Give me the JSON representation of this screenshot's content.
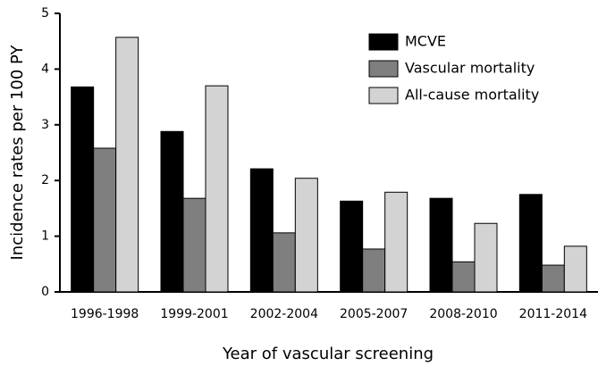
{
  "chart_data": {
    "type": "bar",
    "x_label": "Year of vascular screening",
    "y_label": "Incidence rates per 100 PY",
    "categories": [
      "1996-1998",
      "1999-2001",
      "2002-2004",
      "2005-2007",
      "2008-2010",
      "2011-2014"
    ],
    "series": [
      {
        "name": "MCVE",
        "color": "#000000",
        "values": [
          3.68,
          2.88,
          2.21,
          1.63,
          1.68,
          1.75
        ]
      },
      {
        "name": "Vascular mortality",
        "color": "#7f7f7f",
        "values": [
          2.58,
          1.68,
          1.06,
          0.77,
          0.54,
          0.48
        ]
      },
      {
        "name": "All-cause mortality",
        "color": "#d3d3d3",
        "values": [
          4.57,
          3.7,
          2.04,
          1.79,
          1.23,
          0.82
        ]
      }
    ],
    "ylim": [
      0,
      5
    ],
    "yticks": [
      0,
      1,
      2,
      3,
      4,
      5
    ],
    "grid": false,
    "legend": "upper right"
  }
}
